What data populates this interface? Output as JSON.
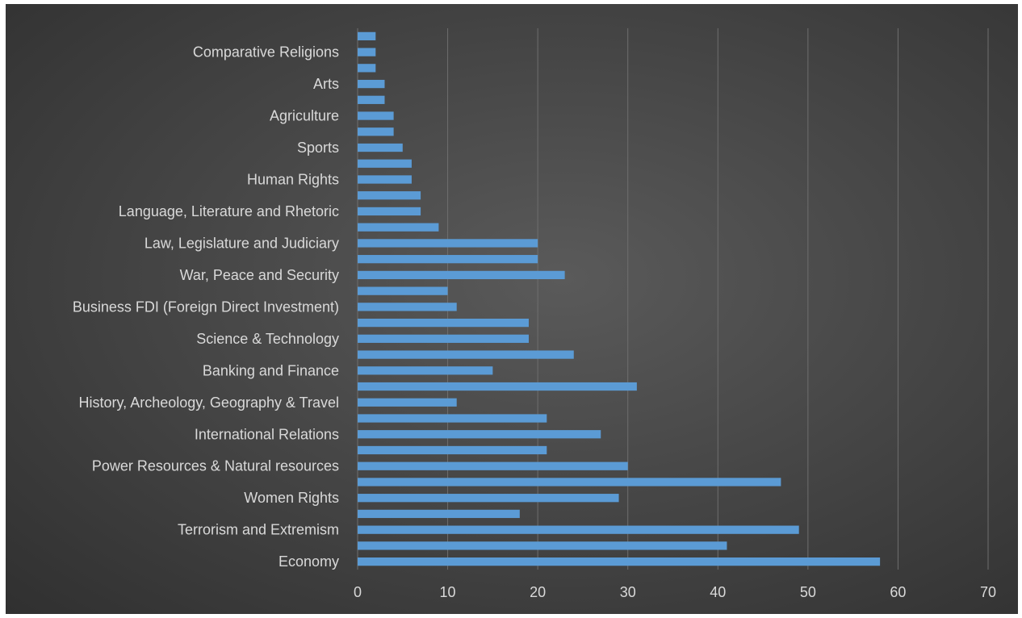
{
  "colors": {
    "bar": "#5b9bd5",
    "grid": "#6e6e6e",
    "text": "#d9d9d9"
  },
  "chart_data": {
    "type": "bar",
    "orientation": "horizontal",
    "title": "",
    "xlabel": "",
    "ylabel": "",
    "xlim": [
      0,
      70
    ],
    "x_ticks": [
      0,
      10,
      20,
      30,
      40,
      50,
      60,
      70
    ],
    "grid": "vertical",
    "legend": "none",
    "categories": [
      "Economy",
      "",
      "Terrorism and Extremism",
      "",
      "Women Rights",
      "",
      "Power Resources & Natural resources ",
      "",
      "International Relations",
      "",
      "History, Archeology, Geography & Travel",
      "",
      "Banking and Finance",
      "",
      "Science & Technology",
      "",
      "Business FDI (Foreign Direct Investment)",
      "",
      "War, Peace and Security",
      "",
      "Law, Legislature and Judiciary ",
      "",
      "Language, Literature and Rhetoric",
      "",
      "Human Rights",
      "",
      "Sports",
      "",
      "Agriculture ",
      "",
      "Arts",
      "",
      "Comparative Religions",
      ""
    ],
    "values": [
      58,
      41,
      49,
      18,
      29,
      47,
      30,
      21,
      27,
      21,
      11,
      31,
      15,
      24,
      19,
      19,
      11,
      10,
      23,
      20,
      20,
      9,
      7,
      7,
      6,
      6,
      5,
      4,
      4,
      3,
      3,
      2,
      2,
      2
    ]
  }
}
